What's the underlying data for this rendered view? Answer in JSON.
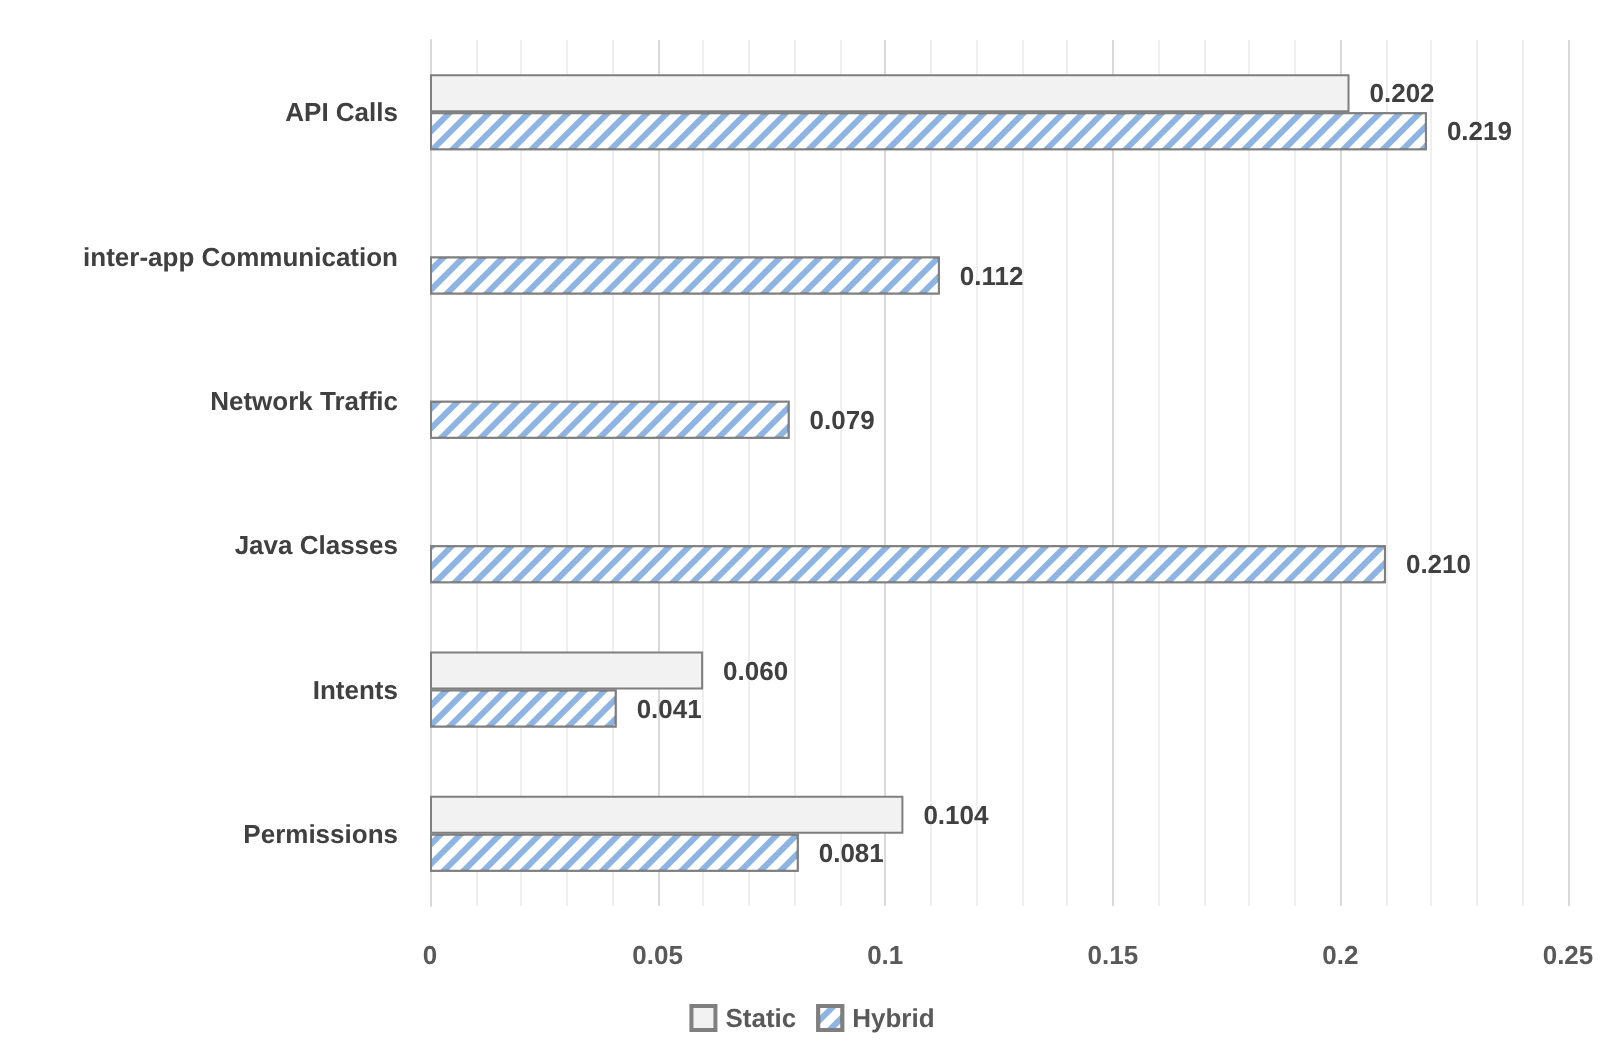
{
  "chart_data": {
    "type": "bar",
    "orientation": "horizontal",
    "categories": [
      "API Calls",
      "inter-app Communication",
      "Network Traffic",
      "Java Classes",
      "Intents",
      "Permissions"
    ],
    "series": [
      {
        "name": "Static",
        "color": "#f2f2f2",
        "values": [
          0.202,
          null,
          null,
          null,
          0.06,
          0.104
        ],
        "value_labels": [
          "0.202",
          null,
          null,
          null,
          "0.060",
          "0.104"
        ]
      },
      {
        "name": "Hybrid",
        "color": "#8db4e2",
        "values": [
          0.219,
          0.112,
          0.079,
          0.21,
          0.041,
          0.081
        ],
        "value_labels": [
          "0.219",
          "0.112",
          "0.079",
          "0.210",
          "0.041",
          "0.081"
        ]
      }
    ],
    "xlim": [
      0,
      0.25
    ],
    "xticks": [
      0,
      0.05,
      0.1,
      0.15,
      0.2,
      0.25
    ],
    "grid": "x",
    "legend": "bottom"
  }
}
